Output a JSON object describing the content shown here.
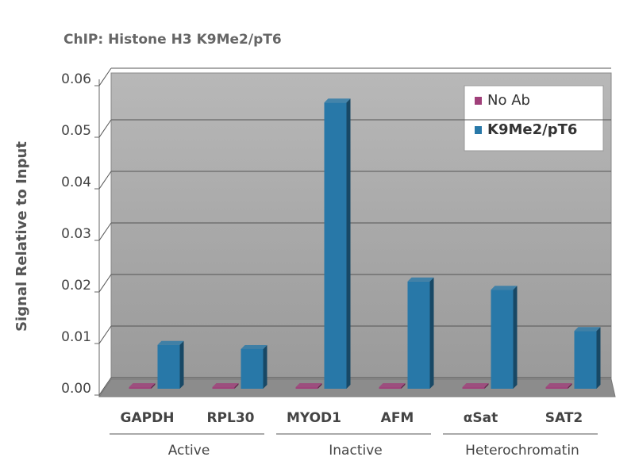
{
  "chart_data": {
    "type": "bar",
    "title": "ChIP: Histone H3 K9Me2/pT6",
    "y_label": "Signal Relative to Input",
    "categories": [
      "GAPDH",
      "RPL30",
      "MYOD1",
      "AFM",
      "αSat",
      "SAT2"
    ],
    "groups": [
      "Active",
      "Inactive",
      "Heterochromatin"
    ],
    "series": [
      {
        "name": "No Ab",
        "color": "#a0407a",
        "values": [
          0.0003,
          0.0003,
          0.0003,
          0.0003,
          0.0003,
          0.0003
        ]
      },
      {
        "name": "K9Me2/pT6",
        "color": "#2878a8",
        "values": [
          0.0085,
          0.0077,
          0.0555,
          0.0208,
          0.0192,
          0.0112
        ]
      }
    ],
    "ylim": [
      0,
      0.06
    ],
    "yticks": [
      {
        "value": 0,
        "label": "0.00"
      },
      0.01,
      0.02,
      0.03,
      0.04,
      0.05,
      0.06
    ],
    "grid": true,
    "legend": "top-right"
  }
}
